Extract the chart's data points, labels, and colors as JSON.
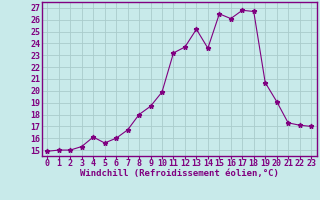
{
  "x": [
    0,
    1,
    2,
    3,
    4,
    5,
    6,
    7,
    8,
    9,
    10,
    11,
    12,
    13,
    14,
    15,
    16,
    17,
    18,
    19,
    20,
    21,
    22,
    23
  ],
  "y": [
    14.9,
    15.0,
    15.0,
    15.3,
    16.1,
    15.6,
    16.0,
    16.7,
    18.0,
    18.7,
    19.9,
    23.2,
    23.7,
    25.2,
    23.6,
    26.5,
    26.1,
    26.8,
    26.7,
    20.7,
    19.1,
    17.3,
    17.1,
    17.0
  ],
  "line_color": "#800080",
  "marker": "*",
  "marker_size": 3.5,
  "bg_color": "#c8eaea",
  "grid_color": "#b0d8d8",
  "xlabel": "Windchill (Refroidissement éolien,°C)",
  "ylabel_ticks": [
    15,
    16,
    17,
    18,
    19,
    20,
    21,
    22,
    23,
    24,
    25,
    26,
    27
  ],
  "xlim": [
    -0.5,
    23.5
  ],
  "ylim": [
    14.5,
    27.5
  ],
  "xlabel_fontsize": 6.5,
  "tick_fontsize": 6.0
}
